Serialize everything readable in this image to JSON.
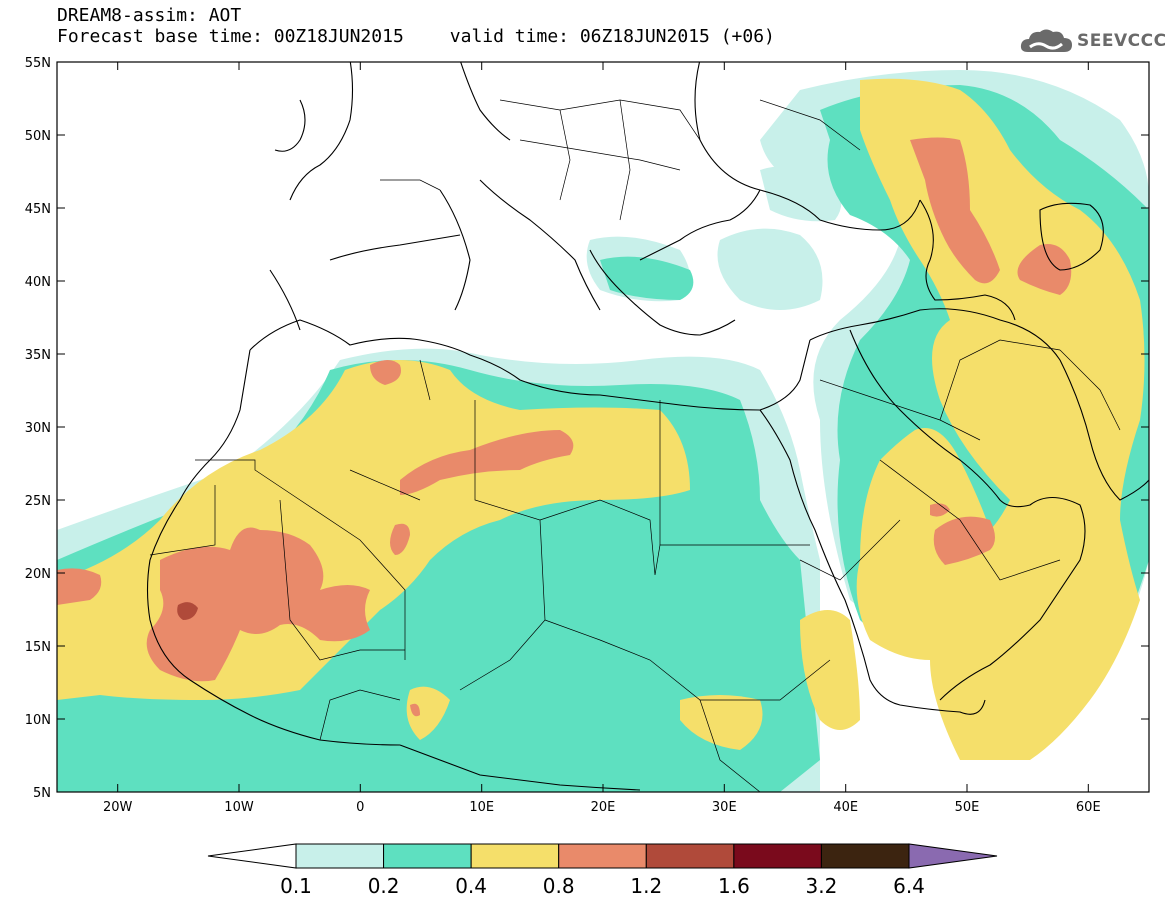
{
  "header": {
    "line1": "DREAM8-assim: AOT",
    "base_time": "Forecast base time: 00Z18JUN2015",
    "valid_time": "valid time: 06Z18JUN2015 (+06)"
  },
  "logo": {
    "text": "SEEVCCC",
    "icon": "cloud-icon"
  },
  "map": {
    "projection": "lat-lon",
    "extent": {
      "lon": [
        -25,
        65
      ],
      "lat": [
        5,
        55
      ]
    },
    "lon_ticks": [
      "20W",
      "10W",
      "0",
      "10E",
      "20E",
      "30E",
      "40E",
      "50E",
      "60E"
    ],
    "lat_ticks": [
      "55N",
      "50N",
      "45N",
      "40N",
      "35N",
      "30N",
      "25N",
      "20N",
      "15N",
      "10N",
      "5N"
    ],
    "variable": "Aerosol Optical Thickness",
    "colors": {
      "0.1-0.2": "#c8f0ea",
      "0.2-0.4": "#5ee0c0",
      "0.4-0.8": "#f5df6a",
      "0.8-1.2": "#e98a6a",
      "1.2-1.6": "#b04a3a",
      "1.6-3.2": "#7a0a1c",
      "3.2-6.4": "#3c2410",
      ">6.4": "#8a6ab0"
    }
  },
  "colorbar": {
    "labels": [
      "0.1",
      "0.2",
      "0.4",
      "0.8",
      "1.2",
      "1.6",
      "3.2",
      "6.4"
    ],
    "colors": [
      "#c8f0ea",
      "#5ee0c0",
      "#f5df6a",
      "#e98a6a",
      "#b04a3a",
      "#7a0a1c",
      "#3c2410"
    ],
    "under_color": "#ffffff",
    "over_color": "#8a6ab0"
  }
}
